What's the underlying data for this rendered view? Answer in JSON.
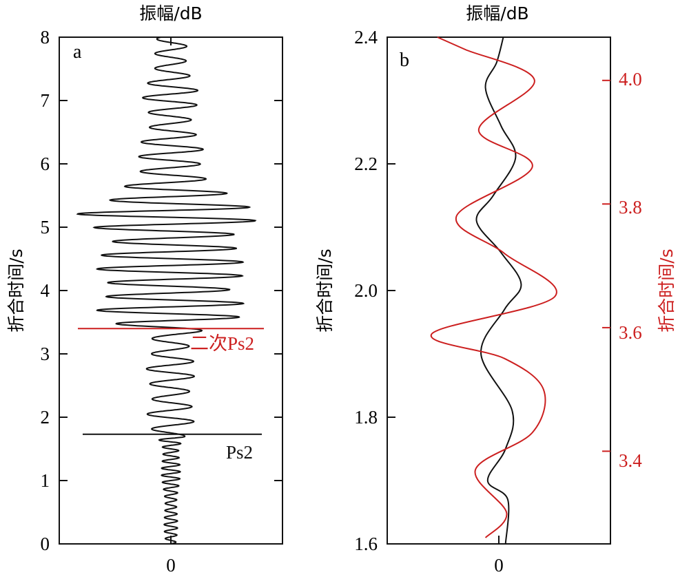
{
  "colors": {
    "black": "#111111",
    "red": "#cc1f1f"
  },
  "chart_data": [
    {
      "panel": "a",
      "type": "line",
      "title": "振幅/dB",
      "ylabel": "折合时间/s",
      "ylim": [
        0,
        8
      ],
      "yticks": [
        "0",
        "1",
        "2",
        "3",
        "4",
        "5",
        "6",
        "7",
        "8"
      ],
      "xtick_label": "0",
      "annotations": [
        {
          "text": "二次Ps2",
          "time": 3.4,
          "color": "red"
        },
        {
          "text": "Ps2",
          "time": 1.73,
          "color": "black"
        }
      ],
      "trace_envelope": {
        "time": [
          0,
          0.5,
          1.0,
          1.5,
          1.8,
          2.0,
          2.5,
          3.0,
          3.3,
          3.5,
          3.8,
          4.0,
          4.2,
          4.5,
          4.8,
          5.0,
          5.2,
          5.4,
          5.6,
          5.8,
          6.0,
          6.3,
          6.6,
          7.0,
          7.4,
          7.8,
          8.0
        ],
        "amplitude": [
          0.05,
          0.07,
          0.08,
          0.1,
          0.18,
          0.22,
          0.24,
          0.2,
          0.25,
          0.6,
          0.7,
          0.72,
          0.85,
          0.62,
          0.65,
          0.98,
          0.95,
          0.55,
          0.55,
          0.42,
          0.32,
          0.28,
          0.26,
          0.26,
          0.22,
          0.16,
          0.12
        ]
      }
    },
    {
      "panel": "b",
      "type": "line",
      "title": "振幅/dB",
      "ylabel": "折合时间/s",
      "ylim": [
        1.6,
        2.4
      ],
      "yticks": [
        "1.6",
        "1.8",
        "2.0",
        "2.2",
        "2.4"
      ],
      "xtick_label": "0",
      "y2label": "折合时间/s",
      "y2lim": [
        3.25,
        4.07
      ],
      "y2ticks": [
        "3.4",
        "3.6",
        "3.8",
        "4.0"
      ],
      "series": [
        {
          "color": "black",
          "axis": "left",
          "points": [
            [
              1.6,
              0.06
            ],
            [
              1.67,
              0.08
            ],
            [
              1.7,
              -0.1
            ],
            [
              1.75,
              0.06
            ],
            [
              1.81,
              0.12
            ],
            [
              1.9,
              -0.16
            ],
            [
              1.97,
              0.05
            ],
            [
              2.01,
              0.2
            ],
            [
              2.06,
              0.02
            ],
            [
              2.11,
              -0.2
            ],
            [
              2.15,
              -0.05
            ],
            [
              2.21,
              0.15
            ],
            [
              2.26,
              0.02
            ],
            [
              2.32,
              -0.12
            ],
            [
              2.36,
              -0.02
            ],
            [
              2.4,
              0.04
            ]
          ]
        },
        {
          "color": "red",
          "axis": "right",
          "points": [
            [
              3.26,
              -0.12
            ],
            [
              3.3,
              0.07
            ],
            [
              3.37,
              -0.21
            ],
            [
              3.43,
              0.3
            ],
            [
              3.5,
              0.4
            ],
            [
              3.55,
              0.05
            ],
            [
              3.59,
              -0.6
            ],
            [
              3.65,
              0.5
            ],
            [
              3.72,
              0.05
            ],
            [
              3.78,
              -0.38
            ],
            [
              3.86,
              0.3
            ],
            [
              3.92,
              -0.18
            ],
            [
              4.0,
              0.32
            ],
            [
              4.05,
              -0.3
            ],
            [
              4.07,
              -0.55
            ]
          ]
        }
      ]
    }
  ]
}
